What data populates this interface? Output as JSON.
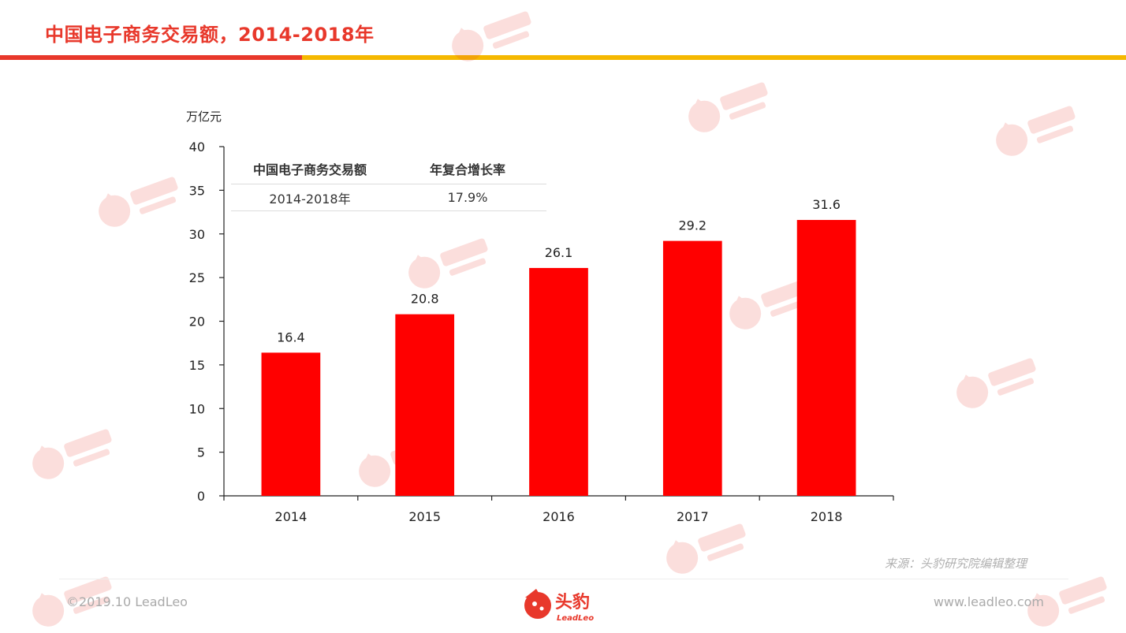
{
  "slide": {
    "title": "中国电子商务交易额，2014-2018年",
    "source": "来源：头豹研究院编辑整理",
    "copyright": "©2019.10 LeadLeo",
    "website": "www.leadleo.com",
    "logo_text": "头豹",
    "logo_subtext": "LeadLeo",
    "accent_red": "#e8382b",
    "accent_yellow": "#f5b800"
  },
  "cagr_table": {
    "headers": [
      "中国电子商务交易额",
      "年复合增长率"
    ],
    "rows": [
      [
        "2014-2018年",
        "17.9%"
      ]
    ]
  },
  "chart_data": {
    "type": "bar",
    "categories": [
      "2014",
      "2015",
      "2016",
      "2017",
      "2018"
    ],
    "values": [
      16.4,
      20.8,
      26.1,
      29.2,
      31.6
    ],
    "data_labels": [
      "16.4",
      "20.8",
      "26.1",
      "29.2",
      "31.6"
    ],
    "title": "",
    "xlabel": "",
    "ylabel": "万亿元",
    "ylim": [
      0,
      40
    ],
    "yticks": [
      0,
      5,
      10,
      15,
      20,
      25,
      30,
      35,
      40
    ],
    "ytick_labels": [
      "0",
      "5",
      "10",
      "15",
      "20",
      "25",
      "30",
      "35",
      "40"
    ],
    "bar_color": "#ff0000",
    "grid": false,
    "legend": "none"
  }
}
